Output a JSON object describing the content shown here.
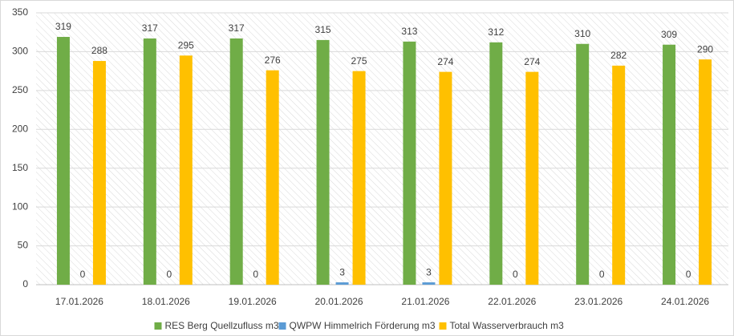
{
  "chart_data": {
    "type": "bar",
    "categories": [
      "17.01.2026",
      "18.01.2026",
      "19.01.2026",
      "20.01.2026",
      "21.01.2026",
      "22.01.2026",
      "23.01.2026",
      "24.01.2026"
    ],
    "series": [
      {
        "name": "RES Berg Quellzufluss m3",
        "color": "#70ad47",
        "values": [
          319,
          317,
          317,
          315,
          313,
          312,
          310,
          309
        ]
      },
      {
        "name": "QWPW Himmelrich Förderung m3",
        "color": "#5b9bd5",
        "values": [
          0,
          0,
          0,
          3,
          3,
          0,
          0,
          0
        ]
      },
      {
        "name": "Total Wasserverbrauch m3",
        "color": "#ffc000",
        "values": [
          288,
          295,
          276,
          275,
          274,
          274,
          282,
          290
        ]
      }
    ],
    "ylim": [
      0,
      350
    ],
    "yticks": [
      0,
      50,
      100,
      150,
      200,
      250,
      300,
      350
    ],
    "grid": true,
    "legend": "bottom"
  }
}
